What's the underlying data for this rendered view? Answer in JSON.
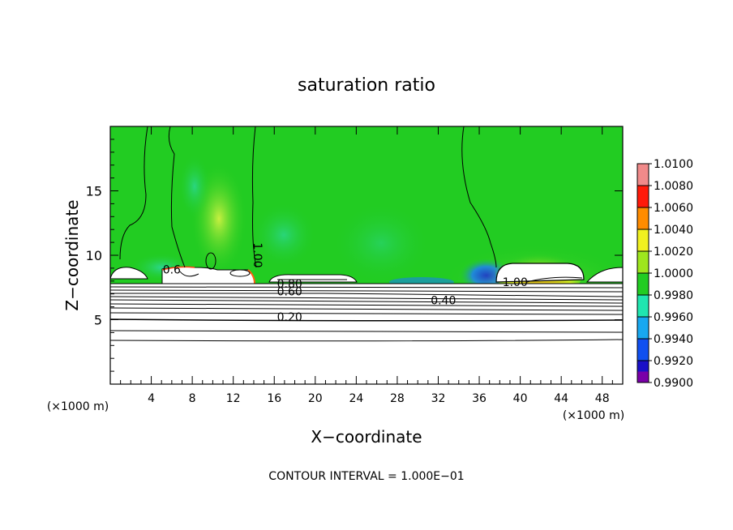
{
  "chart_data": {
    "type": "heatmap",
    "title": "saturation ratio",
    "xlabel": "X−coordinate",
    "ylabel": "Z−coordinate",
    "x_unit_left": "(×1000 m)",
    "x_unit_right": "(×1000 m)",
    "xlim": [
      0,
      50
    ],
    "ylim": [
      0,
      20
    ],
    "x_ticks": [
      4,
      8,
      12,
      16,
      20,
      24,
      28,
      32,
      36,
      40,
      44,
      48
    ],
    "y_ticks": [
      5,
      10,
      15
    ],
    "footer": "CONTOUR INTERVAL = 1.000E−01",
    "colorbar": {
      "levels": [
        "0.9900",
        "0.9920",
        "0.9940",
        "0.9960",
        "0.9980",
        "1.0000",
        "1.0020",
        "1.0040",
        "1.0060",
        "1.0080",
        "1.0100"
      ],
      "colors": [
        "#7a00a8",
        "#1a10c8",
        "#1050f0",
        "#18a8f0",
        "#20e6b0",
        "#22cc22",
        "#9ee61e",
        "#f0f020",
        "#ff8c00",
        "#ff1a0a",
        "#f08a8a"
      ]
    },
    "contour_labels": [
      {
        "text": "1.00",
        "x": 14,
        "y": 10
      },
      {
        "text": "0.80",
        "x": 17.5,
        "y": 7.5
      },
      {
        "text": "0.60",
        "x": 17.5,
        "y": 6.9
      },
      {
        "text": "0.40",
        "x": 32.5,
        "y": 6.2
      },
      {
        "text": "0.20",
        "x": 17.5,
        "y": 4.9
      },
      {
        "text": "1.00",
        "x": 39.5,
        "y": 7.6
      },
      {
        "text": "0.6",
        "x": 6,
        "y": 8.6
      }
    ],
    "background_value": 1.0
  }
}
